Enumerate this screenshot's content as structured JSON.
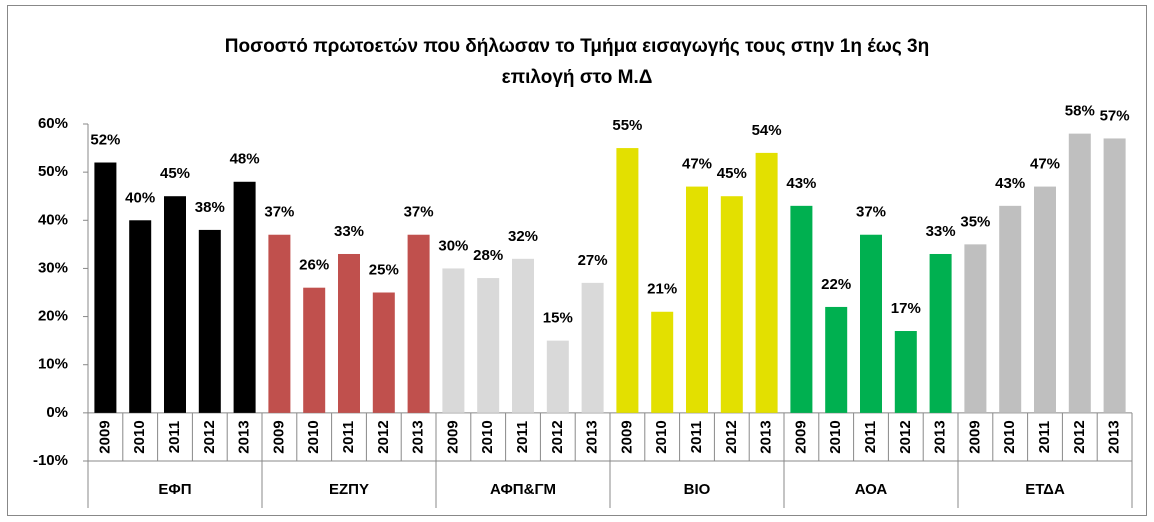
{
  "chart_data": {
    "type": "bar",
    "title": "Ποσοστό πρωτοετών που δήλωσαν το Τμήμα εισαγωγής τους  στην 1η έως 3η",
    "subtitle": "επιλογή στο Μ.Δ",
    "ylim": [
      -10,
      60
    ],
    "yticks": [
      {
        "value": -10,
        "label": "-10%"
      },
      {
        "value": 0,
        "label": "0%"
      },
      {
        "value": 10,
        "label": "10%"
      },
      {
        "value": 20,
        "label": "20%"
      },
      {
        "value": 30,
        "label": "30%"
      },
      {
        "value": 40,
        "label": "40%"
      },
      {
        "value": 50,
        "label": "50%"
      },
      {
        "value": 60,
        "label": "60%"
      }
    ],
    "groups": [
      {
        "name": "ΕΦΠ",
        "color": "#000000",
        "categories": [
          "2009",
          "2010",
          "2011",
          "2012",
          "2013"
        ],
        "values": [
          52,
          40,
          45,
          38,
          48
        ],
        "value_labels": [
          "52%",
          "40%",
          "45%",
          "38%",
          "48%"
        ]
      },
      {
        "name": "ΕΖΠΥ",
        "color": "#c0504d",
        "categories": [
          "2009",
          "2010",
          "2011",
          "2012",
          "2013"
        ],
        "values": [
          37,
          26,
          33,
          25,
          37
        ],
        "value_labels": [
          "37%",
          "26%",
          "33%",
          "25%",
          "37%"
        ]
      },
      {
        "name": "ΑΦΠ&ΓΜ",
        "color": "#d9d9d9",
        "categories": [
          "2009",
          "2010",
          "2011",
          "2012",
          "2013"
        ],
        "values": [
          30,
          28,
          32,
          15,
          27
        ],
        "value_labels": [
          "30%",
          "28%",
          "32%",
          "15%",
          "27%"
        ]
      },
      {
        "name": "ΒΙΟ",
        "color": "#e3e000",
        "categories": [
          "2009",
          "2010",
          "2011",
          "2012",
          "2013"
        ],
        "values": [
          55,
          21,
          47,
          45,
          54
        ],
        "value_labels": [
          "55%",
          "21%",
          "47%",
          "45%",
          "54%"
        ]
      },
      {
        "name": "ΑΟΑ",
        "color": "#00b050",
        "categories": [
          "2009",
          "2010",
          "2011",
          "2012",
          "2013"
        ],
        "values": [
          43,
          22,
          37,
          17,
          33
        ],
        "value_labels": [
          "43%",
          "22%",
          "37%",
          "17%",
          "33%"
        ]
      },
      {
        "name": "ΕΤΔΑ",
        "color": "#bfbfbf",
        "categories": [
          "2009",
          "2010",
          "2011",
          "2012",
          "2013"
        ],
        "values": [
          35,
          43,
          47,
          58,
          57
        ],
        "value_labels": [
          "35%",
          "43%",
          "47%",
          "58%",
          "57%"
        ]
      }
    ]
  }
}
